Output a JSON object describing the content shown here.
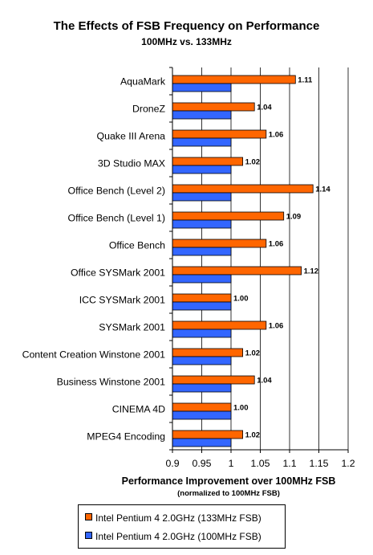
{
  "chart_data": {
    "type": "bar",
    "orientation": "horizontal",
    "title": "The Effects of FSB Frequency on Performance",
    "subtitle": "100MHz vs. 133MHz",
    "xlabel": "Performance Improvement over 100MHz FSB",
    "xlabel_note": "(normalized to 100MHz FSB)",
    "xlim": [
      0.9,
      1.2
    ],
    "xticks": [
      "0.9",
      "0.95",
      "1",
      "1.05",
      "1.1",
      "1.15",
      "1.2"
    ],
    "grid": "vertical gridlines",
    "legend_position": "bottom",
    "categories": [
      "AquaMark",
      "DroneZ",
      "Quake III Arena",
      "3D Studio MAX",
      "Office Bench (Level 2)",
      "Office Bench (Level 1)",
      "Office Bench",
      "Office SYSMark 2001",
      "ICC SYSMark 2001",
      "SYSMark 2001",
      "Content Creation Winstone 2001",
      "Business Winstone 2001",
      "CINEMA 4D",
      "MPEG4 Encoding"
    ],
    "series": [
      {
        "name": "Intel Pentium 4 2.0GHz (133MHz FSB)",
        "color": "#FF6600",
        "values": [
          1.11,
          1.04,
          1.06,
          1.02,
          1.14,
          1.09,
          1.06,
          1.12,
          1.0,
          1.06,
          1.02,
          1.04,
          1.0,
          1.02
        ],
        "data_labels": [
          "1.11",
          "1.04",
          "1.06",
          "1.02",
          "1.14",
          "1.09",
          "1.06",
          "1.12",
          "1.00",
          "1.06",
          "1.02",
          "1.04",
          "1.00",
          "1.02"
        ]
      },
      {
        "name": "Intel Pentium 4 2.0GHz (100MHz FSB)",
        "color": "#3366FF",
        "values": [
          1,
          1,
          1,
          1,
          1,
          1,
          1,
          1,
          1,
          1,
          1,
          1,
          1,
          1
        ]
      }
    ]
  }
}
